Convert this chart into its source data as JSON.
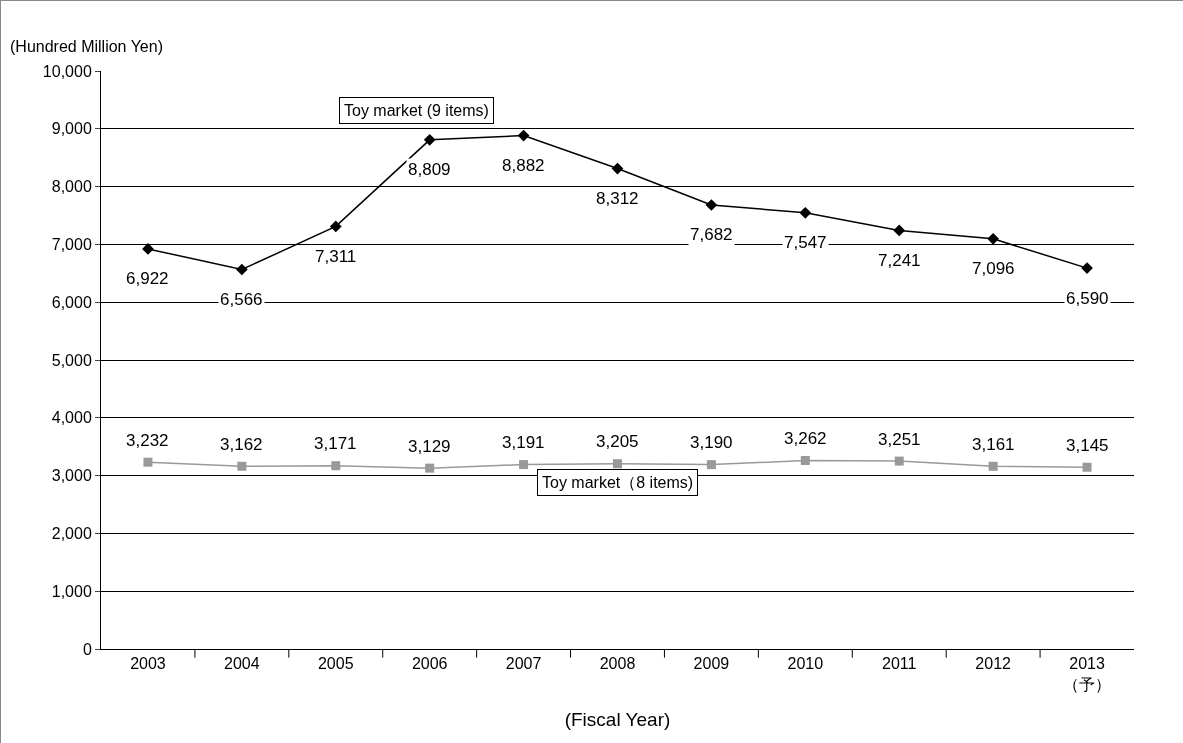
{
  "chart_data": {
    "type": "line",
    "ylabel": "(Hundred Million Yen)",
    "xlabel": "(Fiscal Year)",
    "categories": [
      "2003",
      "2004",
      "2005",
      "2006",
      "2007",
      "2008",
      "2009",
      "2010",
      "2011",
      "2012",
      "2013\n（予）"
    ],
    "series": [
      {
        "name": "Toy market (9 items)",
        "color": "#000000",
        "marker": "diamond",
        "values": [
          6922,
          6566,
          7311,
          8809,
          8882,
          8312,
          7682,
          7547,
          7241,
          7096,
          6590
        ],
        "value_labels": [
          "6,922",
          "6,566",
          "7,311",
          "8,809",
          "8,882",
          "8,312",
          "7,682",
          "7,547",
          "7,241",
          "7,096",
          "6,590"
        ]
      },
      {
        "name": "Toy market（8 items)",
        "color": "#999999",
        "marker": "square",
        "values": [
          3232,
          3162,
          3171,
          3129,
          3191,
          3205,
          3190,
          3262,
          3251,
          3161,
          3145
        ],
        "value_labels": [
          "3,232",
          "3,162",
          "3,171",
          "3,129",
          "3,191",
          "3,205",
          "3,190",
          "3,262",
          "3,251",
          "3,161",
          "3,145"
        ]
      }
    ],
    "ylim": [
      0,
      10000
    ],
    "yticks": [
      {
        "value": 0,
        "label": "0"
      },
      {
        "value": 1000,
        "label": "1,000"
      },
      {
        "value": 2000,
        "label": "2,000"
      },
      {
        "value": 3000,
        "label": "3,000"
      },
      {
        "value": 4000,
        "label": "4,000"
      },
      {
        "value": 5000,
        "label": "5,000"
      },
      {
        "value": 6000,
        "label": "6,000"
      },
      {
        "value": 7000,
        "label": "7,000"
      },
      {
        "value": 8000,
        "label": "8,000"
      },
      {
        "value": 9000,
        "label": "9,000"
      },
      {
        "value": 10000,
        "label": "10,000"
      }
    ],
    "grid": "y",
    "legend": false,
    "line_style": "solid"
  }
}
